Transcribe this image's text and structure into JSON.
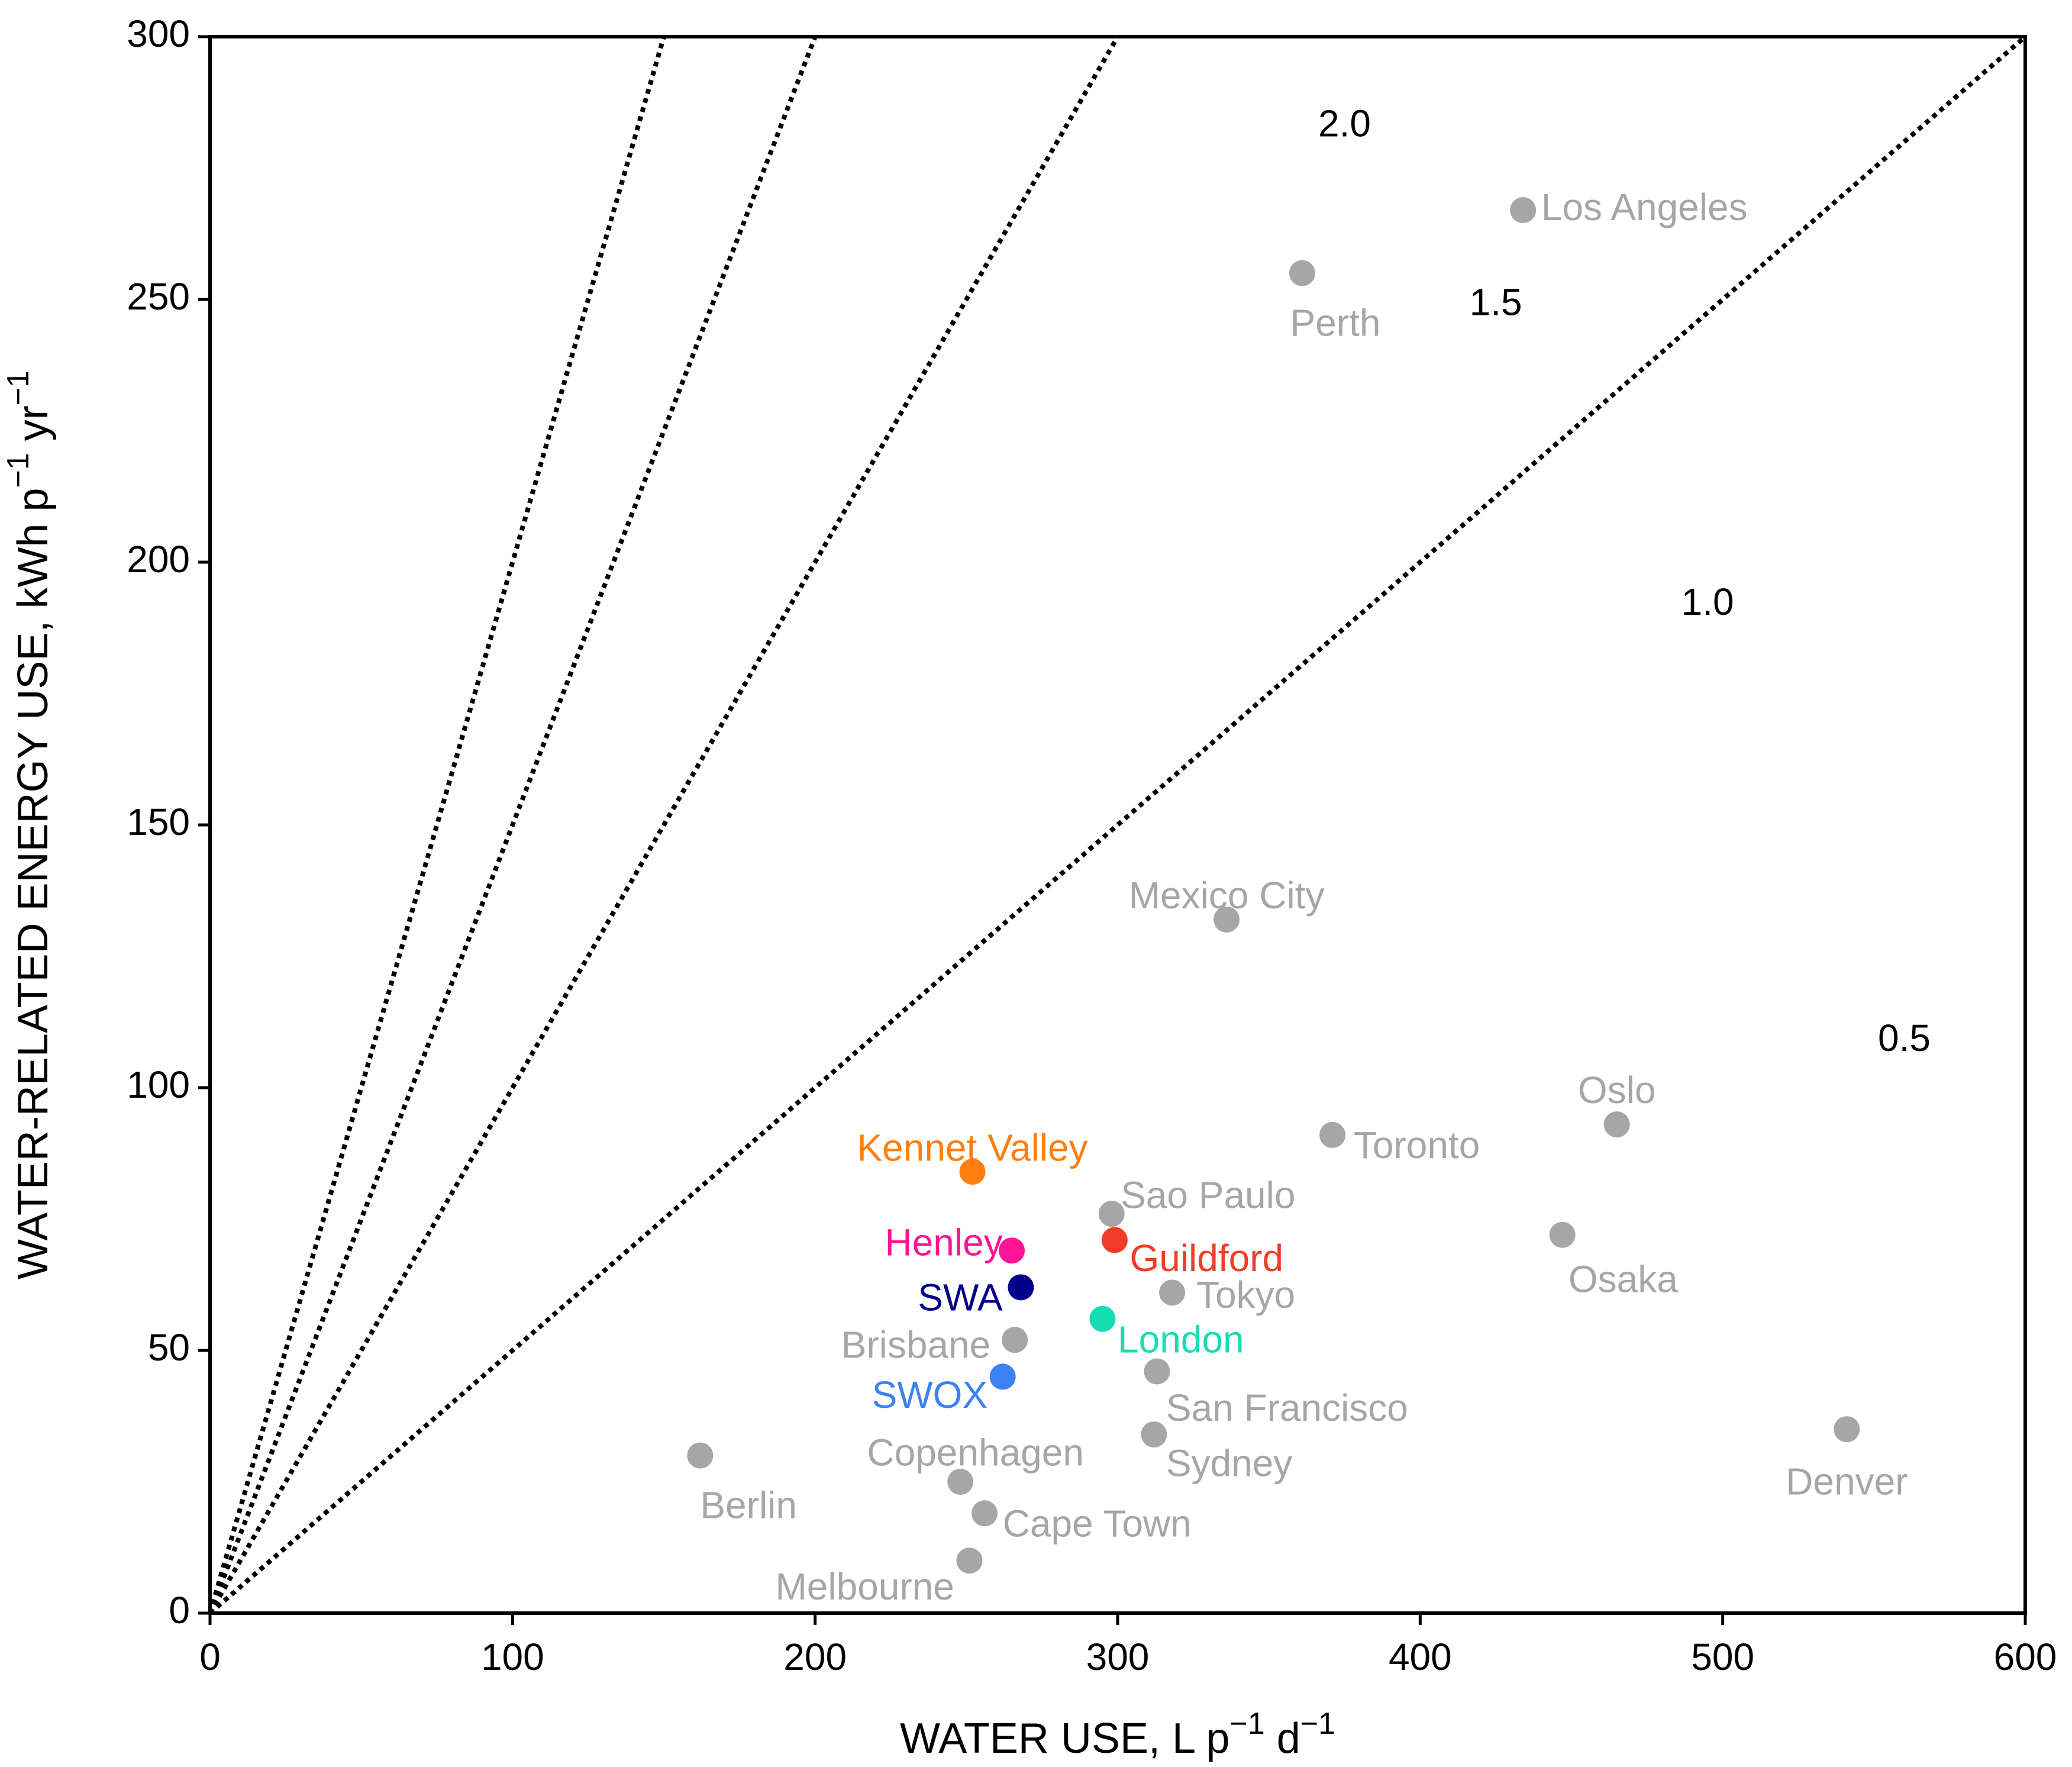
{
  "chart_data": {
    "type": "scatter",
    "title": "",
    "xlabel": "WATER USE, L p",
    "xlabel_sup1": "−1",
    "xlabel_mid": " d",
    "xlabel_sup2": "−1",
    "ylabel": "WATER-RELATED ENERGY USE, kWh p",
    "ylabel_sup1": "−1",
    "ylabel_mid": " yr",
    "ylabel_sup2": "−1",
    "xlim": [
      0,
      600
    ],
    "ylim": [
      0,
      300
    ],
    "xticks": [
      0,
      100,
      200,
      300,
      400,
      500,
      600
    ],
    "yticks": [
      0,
      50,
      100,
      150,
      200,
      250,
      300
    ],
    "xtick_labels": [
      "0",
      "100",
      "200",
      "300",
      "400",
      "500",
      "600"
    ],
    "ytick_labels": [
      "0",
      "50",
      "100",
      "150",
      "200",
      "250",
      "300"
    ],
    "grid": false,
    "reference_lines": [
      {
        "label": "2.0",
        "slope_kwh_per_L_day": 2.0,
        "label_x": 375,
        "label_y": 281
      },
      {
        "label": "1.5",
        "slope_kwh_per_L_day": 1.5,
        "label_x": 425,
        "label_y": 247
      },
      {
        "label": "1.0",
        "slope_kwh_per_L_day": 1.0,
        "label_x": 495,
        "label_y": 190
      },
      {
        "label": "0.5",
        "slope_kwh_per_L_day": 0.5,
        "label_x": 560,
        "label_y": 107
      }
    ],
    "points": [
      {
        "name": "Los Angeles",
        "x": 434,
        "y": 267,
        "color": "#a6a6a6",
        "label_x": 440,
        "label_y": 267,
        "anchor": "start"
      },
      {
        "name": "Perth",
        "x": 361,
        "y": 255,
        "color": "#a6a6a6",
        "label_x": 357,
        "label_y": 245,
        "anchor": "start"
      },
      {
        "name": "Mexico City",
        "x": 336,
        "y": 132,
        "color": "#a6a6a6",
        "label_x": 336,
        "label_y": 136,
        "anchor": "middle"
      },
      {
        "name": "Oslo",
        "x": 465,
        "y": 93,
        "color": "#a6a6a6",
        "label_x": 465,
        "label_y": 99,
        "anchor": "middle"
      },
      {
        "name": "Toronto",
        "x": 371,
        "y": 91,
        "color": "#a6a6a6",
        "label_x": 378,
        "label_y": 88.5,
        "anchor": "start"
      },
      {
        "name": "Sao Paulo",
        "x": 298,
        "y": 76,
        "color": "#a6a6a6",
        "label_x": 301,
        "label_y": 79,
        "anchor": "start"
      },
      {
        "name": "Osaka",
        "x": 447,
        "y": 72,
        "color": "#a6a6a6",
        "label_x": 449,
        "label_y": 63,
        "anchor": "start"
      },
      {
        "name": "Tokyo",
        "x": 318,
        "y": 61,
        "color": "#a6a6a6",
        "label_x": 326,
        "label_y": 60,
        "anchor": "start"
      },
      {
        "name": "Brisbane",
        "x": 266,
        "y": 52,
        "color": "#a6a6a6",
        "label_x": 258,
        "label_y": 50.5,
        "anchor": "end"
      },
      {
        "name": "San Francisco",
        "x": 313,
        "y": 46,
        "color": "#a6a6a6",
        "label_x": 316,
        "label_y": 38.5,
        "anchor": "start"
      },
      {
        "name": "Sydney",
        "x": 312,
        "y": 34,
        "color": "#a6a6a6",
        "label_x": 316,
        "label_y": 28,
        "anchor": "start"
      },
      {
        "name": "Denver",
        "x": 541,
        "y": 35,
        "color": "#a6a6a6",
        "label_x": 541,
        "label_y": 24.5,
        "anchor": "middle"
      },
      {
        "name": "Berlin",
        "x": 162,
        "y": 30,
        "color": "#a6a6a6",
        "label_x": 162,
        "label_y": 20,
        "anchor": "start"
      },
      {
        "name": "Copenhagen",
        "x": 248,
        "y": 25,
        "color": "#a6a6a6",
        "label_x": 253,
        "label_y": 30,
        "anchor": "middle"
      },
      {
        "name": "Cape Town",
        "x": 256,
        "y": 19,
        "color": "#a6a6a6",
        "label_x": 262,
        "label_y": 16.5,
        "anchor": "start"
      },
      {
        "name": "Melbourne",
        "x": 251,
        "y": 10,
        "color": "#a6a6a6",
        "label_x": 246,
        "label_y": 4.5,
        "anchor": "end"
      },
      {
        "name": "Kennet Valley",
        "x": 252,
        "y": 84,
        "color": "#ff7f0e",
        "label_x": 252,
        "label_y": 88,
        "anchor": "middle"
      },
      {
        "name": "Henley",
        "x": 265,
        "y": 69,
        "color": "#ff1493",
        "label_x": 262,
        "label_y": 70,
        "anchor": "end"
      },
      {
        "name": "Guildford",
        "x": 299,
        "y": 71,
        "color": "#f03c28",
        "label_x": 304,
        "label_y": 67,
        "anchor": "start"
      },
      {
        "name": "SWA",
        "x": 268,
        "y": 62,
        "color": "#00008b",
        "label_x": 262,
        "label_y": 59.5,
        "anchor": "end"
      },
      {
        "name": "London",
        "x": 295,
        "y": 56,
        "color": "#16dcb4",
        "label_x": 300,
        "label_y": 51.5,
        "anchor": "start"
      },
      {
        "name": "SWOX",
        "x": 262,
        "y": 45,
        "color": "#3c82f0",
        "label_x": 257,
        "label_y": 41,
        "anchor": "end"
      }
    ]
  }
}
